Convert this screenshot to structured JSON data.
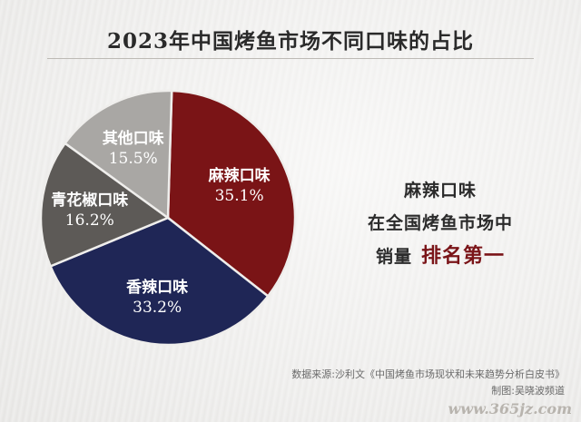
{
  "title": "2023年中国烤鱼市场不同口味的占比",
  "chart_data": {
    "type": "pie",
    "title": "2023年中国烤鱼市场不同口味的占比",
    "slices": [
      {
        "label": "麻辣口味",
        "value": 35.1,
        "value_text": "35.1%",
        "color": "#7a1416"
      },
      {
        "label": "香辣口味",
        "value": 33.2,
        "value_text": "33.2%",
        "color": "#1f2656"
      },
      {
        "label": "青花椒口味",
        "value": 16.2,
        "value_text": "16.2%",
        "color": "#5d5a57"
      },
      {
        "label": "其他口味",
        "value": 15.5,
        "value_text": "15.5%",
        "color": "#a9a7a4"
      }
    ]
  },
  "callout": {
    "line1": "麻辣口味",
    "line2": "在全国烤鱼市场中",
    "line3_prefix": "销量",
    "line3_highlight": "排名第一"
  },
  "source": {
    "data_source": "数据来源:沙利文《中国烤鱼市场现状和未来趋势分析白皮书》",
    "credit": "制图:吴晓波频道"
  },
  "watermark": "www.365jz.com",
  "colors": {
    "background": "#efeeec",
    "highlight": "#7a1418"
  }
}
